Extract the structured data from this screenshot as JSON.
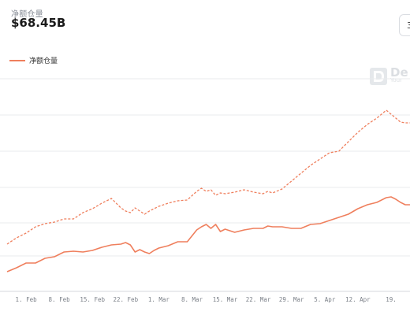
{
  "header": {
    "metric_label": "净额仓量",
    "metric_value": "$68.45B",
    "range_label": "3"
  },
  "legend": {
    "label": "净额仓量"
  },
  "watermark": {
    "title": "De",
    "subtitle": "Your"
  },
  "colors": {
    "series": "#ef7f5d",
    "grid": "#e9ebee"
  },
  "chart_data": {
    "type": "line",
    "title": "",
    "xlabel": "",
    "ylabel": "",
    "x_ticks": [
      "1. Feb",
      "8. Feb",
      "15. Feb",
      "22. Feb",
      "1. Mar",
      "8. Mar",
      "15. Mar",
      "22. Mar",
      "29. Mar",
      "5. Apr",
      "12. Apr",
      "19."
    ],
    "x_start": "2021-01-28",
    "grid": true,
    "legend_position": "top-left",
    "series": [
      {
        "name": "净额仓量",
        "style": "solid",
        "x_days": [
          0,
          2,
          4,
          6,
          8,
          10,
          12,
          14,
          16,
          18,
          20,
          22,
          24,
          25,
          26,
          27,
          28,
          29,
          30,
          31,
          32,
          34,
          36,
          38,
          40,
          41,
          42,
          43,
          44,
          45,
          46,
          48,
          50,
          52,
          54,
          55,
          56,
          58,
          60,
          62,
          64,
          66,
          68,
          70,
          72,
          74,
          76,
          78,
          80,
          81,
          82,
          83,
          84,
          85
        ],
        "values": [
          0.45,
          0.5,
          0.56,
          0.56,
          0.62,
          0.64,
          0.7,
          0.71,
          0.7,
          0.72,
          0.76,
          0.79,
          0.8,
          0.82,
          0.79,
          0.7,
          0.73,
          0.7,
          0.68,
          0.72,
          0.75,
          0.78,
          0.83,
          0.83,
          0.98,
          1.02,
          1.05,
          1.0,
          1.05,
          0.96,
          0.99,
          0.95,
          0.98,
          1.0,
          1.0,
          1.03,
          1.02,
          1.02,
          1.0,
          1.0,
          1.05,
          1.06,
          1.1,
          1.14,
          1.18,
          1.25,
          1.3,
          1.33,
          1.39,
          1.4,
          1.37,
          1.33,
          1.3,
          1.3
        ]
      },
      {
        "name": "",
        "style": "dashed",
        "x_days": [
          0,
          2,
          4,
          6,
          8,
          10,
          12,
          14,
          16,
          18,
          20,
          22,
          24,
          25,
          26,
          27,
          28,
          29,
          30,
          31,
          32,
          34,
          36,
          38,
          40,
          41,
          42,
          43,
          44,
          45,
          46,
          48,
          50,
          52,
          54,
          55,
          56,
          58,
          60,
          62,
          64,
          66,
          68,
          70,
          72,
          74,
          76,
          78,
          80,
          81,
          82,
          83,
          84,
          85
        ],
        "values": [
          0.8,
          0.88,
          0.94,
          1.02,
          1.06,
          1.08,
          1.12,
          1.12,
          1.2,
          1.25,
          1.32,
          1.38,
          1.26,
          1.22,
          1.2,
          1.26,
          1.22,
          1.18,
          1.22,
          1.25,
          1.28,
          1.32,
          1.35,
          1.36,
          1.47,
          1.51,
          1.47,
          1.49,
          1.42,
          1.45,
          1.44,
          1.46,
          1.49,
          1.46,
          1.44,
          1.47,
          1.45,
          1.5,
          1.6,
          1.7,
          1.8,
          1.88,
          1.96,
          1.98,
          2.1,
          2.22,
          2.32,
          2.4,
          2.5,
          2.45,
          2.4,
          2.35,
          2.34,
          2.34
        ]
      }
    ],
    "ylim": [
      0.2,
      2.9
    ]
  }
}
